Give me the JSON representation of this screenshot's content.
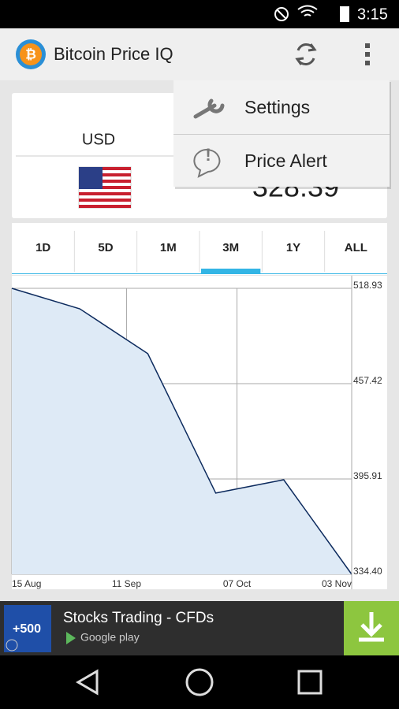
{
  "status_bar": {
    "time": "3:15"
  },
  "app_bar": {
    "title": "Bitcoin Price IQ"
  },
  "price_card": {
    "currency": "USD",
    "price": 328.39
  },
  "menu": {
    "items": [
      "Settings",
      "Price Alert"
    ]
  },
  "tabs": {
    "items": [
      "1D",
      "5D",
      "1M",
      "3M",
      "1Y",
      "ALL"
    ],
    "selected": 3
  },
  "chart_data": {
    "type": "area",
    "x": [
      "15 Aug",
      "31 Aug",
      "16 Sep",
      "02 Oct",
      "18 Oct",
      "03 Nov"
    ],
    "values": [
      518.93,
      505.7,
      476.8,
      386.8,
      395.4,
      334.4
    ],
    "color": "#0d2b5e",
    "fill": "#deeaf6",
    "ylim": [
      334.4,
      518.93
    ],
    "yticks": [
      518.93,
      457.42,
      395.91,
      {
        "value": 334.4,
        "label": "334.40"
      }
    ],
    "xticks": [
      "15 Aug",
      "11 Sep",
      "07 Oct",
      "03 Nov"
    ],
    "grid": true
  },
  "ad": {
    "badge": "+500",
    "title": "Stocks Trading - CFDs",
    "store": "Google play"
  }
}
